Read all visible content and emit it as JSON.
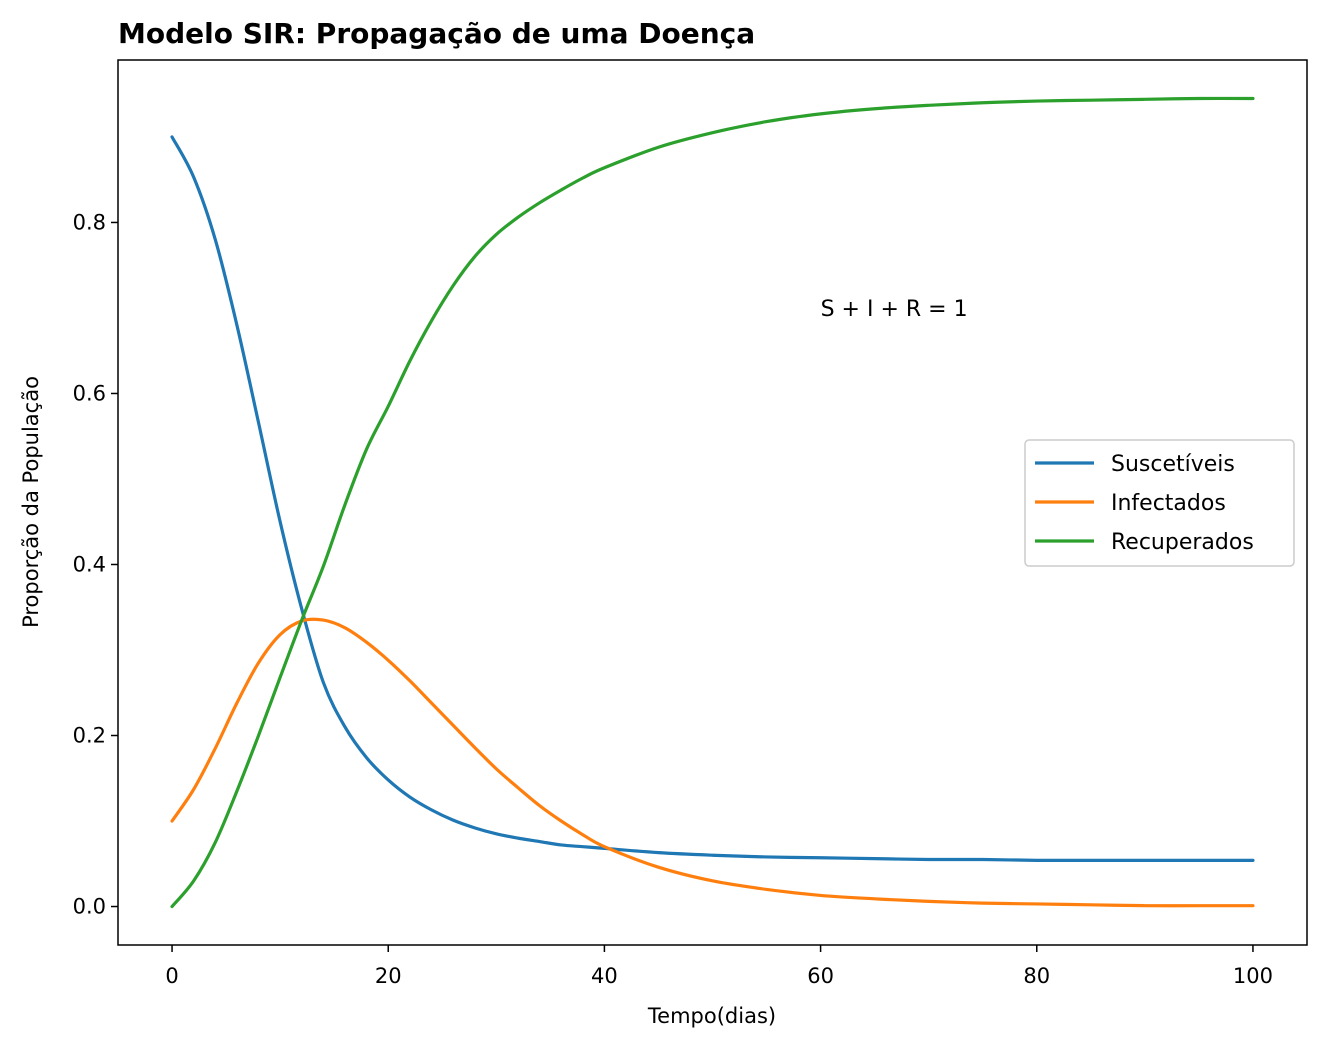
{
  "chart_data": {
    "type": "line",
    "title": "Modelo SIR: Propagação de uma Doença",
    "xlabel": "Tempo(dias)",
    "ylabel": "Proporção da População",
    "xlim": [
      -5,
      105
    ],
    "ylim": [
      -0.045,
      0.99
    ],
    "xticks": [
      0,
      20,
      40,
      60,
      80,
      100
    ],
    "xtick_labels": [
      "0",
      "20",
      "40",
      "60",
      "80",
      "100"
    ],
    "yticks": [
      0.0,
      0.2,
      0.4,
      0.6,
      0.8
    ],
    "ytick_labels": [
      "0.0",
      "0.2",
      "0.4",
      "0.6",
      "0.8"
    ],
    "grid": false,
    "legend_position": "center-right",
    "annotation": {
      "text": "S + I + R = 1",
      "x": 60,
      "y": 0.7
    },
    "series": [
      {
        "name": "Suscetíveis",
        "color": "#1f77b4",
        "x": [
          0,
          2,
          4,
          6,
          8,
          10,
          12,
          14,
          16,
          18,
          20,
          22,
          24,
          26,
          28,
          30,
          32,
          34,
          36,
          38,
          40,
          45,
          50,
          55,
          60,
          65,
          70,
          75,
          80,
          85,
          90,
          95,
          100
        ],
        "y": [
          0.9,
          0.853,
          0.78,
          0.68,
          0.566,
          0.45,
          0.348,
          0.262,
          0.21,
          0.174,
          0.148,
          0.128,
          0.113,
          0.101,
          0.092,
          0.085,
          0.08,
          0.076,
          0.072,
          0.07,
          0.068,
          0.063,
          0.06,
          0.058,
          0.057,
          0.056,
          0.055,
          0.055,
          0.054,
          0.054,
          0.054,
          0.054,
          0.054
        ]
      },
      {
        "name": "Infectados",
        "color": "#ff7f0e",
        "x": [
          0,
          2,
          4,
          6,
          8,
          10,
          12,
          14,
          16,
          18,
          20,
          22,
          24,
          26,
          28,
          30,
          32,
          34,
          36,
          38,
          40,
          45,
          50,
          55,
          60,
          65,
          70,
          75,
          80,
          85,
          90,
          95,
          100
        ],
        "y": [
          0.1,
          0.137,
          0.185,
          0.238,
          0.285,
          0.318,
          0.334,
          0.335,
          0.326,
          0.309,
          0.288,
          0.264,
          0.238,
          0.212,
          0.186,
          0.161,
          0.139,
          0.118,
          0.1,
          0.084,
          0.07,
          0.046,
          0.03,
          0.02,
          0.013,
          0.009,
          0.006,
          0.004,
          0.003,
          0.002,
          0.001,
          0.001,
          0.001
        ]
      },
      {
        "name": "Recuperados",
        "color": "#2ca02c",
        "x": [
          0,
          2,
          4,
          6,
          8,
          10,
          12,
          14,
          16,
          18,
          20,
          22,
          24,
          26,
          28,
          30,
          32,
          34,
          36,
          38,
          40,
          45,
          50,
          55,
          60,
          65,
          70,
          75,
          80,
          85,
          90,
          95,
          100
        ],
        "y": [
          0.0,
          0.03,
          0.075,
          0.135,
          0.2,
          0.268,
          0.335,
          0.398,
          0.47,
          0.535,
          0.585,
          0.638,
          0.685,
          0.726,
          0.76,
          0.786,
          0.806,
          0.823,
          0.838,
          0.852,
          0.864,
          0.888,
          0.905,
          0.918,
          0.927,
          0.933,
          0.937,
          0.94,
          0.942,
          0.943,
          0.944,
          0.945,
          0.945
        ]
      }
    ]
  }
}
